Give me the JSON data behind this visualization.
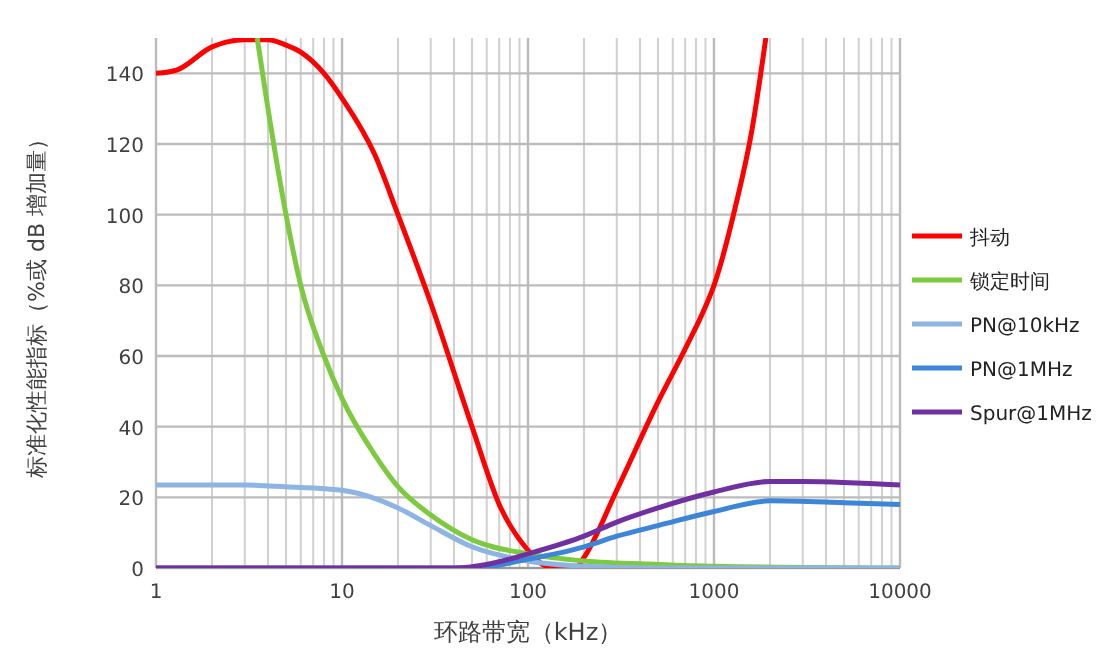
{
  "chart_data": {
    "type": "line",
    "xlabel": "环路带宽（kHz）",
    "ylabel": "标准化性能指标（%或 dB 增加量）",
    "log": "x",
    "xlim": [
      1,
      10000
    ],
    "xticks": [
      1,
      10,
      100,
      1000,
      10000
    ],
    "ylim": [
      0,
      150
    ],
    "yticks": [
      0,
      20,
      40,
      60,
      80,
      100,
      120,
      140
    ],
    "grid": true,
    "legend": "right",
    "marker": "none",
    "line_style": "solid",
    "series": [
      {
        "name": "抖动",
        "color": "#ff0000",
        "x": [
          1,
          1.3,
          2,
          3,
          4,
          5,
          6,
          8,
          10,
          15,
          20,
          30,
          50,
          70,
          100,
          120,
          140,
          180,
          200,
          300,
          500,
          700,
          900,
          1000,
          1300,
          1600,
          1900
        ],
        "values": [
          140,
          141,
          147.5,
          149.5,
          149.5,
          148,
          146,
          140,
          133,
          117,
          100,
          75,
          40,
          18,
          5,
          1,
          0,
          0,
          3,
          22,
          47,
          62,
          74,
          80,
          102,
          124,
          150
        ]
      },
      {
        "name": "锁定时间",
        "color": "#7dc93f",
        "x": [
          3.5,
          4,
          5,
          6,
          8,
          10,
          15,
          20,
          30,
          50,
          100,
          200,
          500,
          1000,
          10000
        ],
        "values": [
          150,
          130,
          100,
          80,
          60,
          48,
          32,
          23,
          15,
          8,
          4,
          2,
          1,
          0.5,
          0
        ]
      },
      {
        "name": "PN@10kHz",
        "color": "#8db4e2",
        "x": [
          1,
          3,
          5,
          10,
          20,
          30,
          50,
          100,
          200,
          500,
          10000
        ],
        "values": [
          23.5,
          23.5,
          23,
          22,
          17,
          12,
          6,
          2,
          0.5,
          0,
          0
        ]
      },
      {
        "name": "PN@1MHz",
        "color": "#3d85d6",
        "x": [
          1,
          50,
          100,
          200,
          300,
          500,
          1000,
          2000,
          5000,
          10000
        ],
        "values": [
          0,
          0,
          2.5,
          6,
          9,
          12,
          16,
          19,
          18.5,
          18
        ]
      },
      {
        "name": "Spur@1MHz",
        "color": "#7030a0",
        "x": [
          1,
          40,
          60,
          100,
          200,
          300,
          500,
          1000,
          2000,
          3000,
          10000
        ],
        "values": [
          0,
          0,
          1,
          4,
          9,
          13,
          17,
          21.5,
          24.5,
          24.5,
          23.5
        ]
      }
    ]
  }
}
